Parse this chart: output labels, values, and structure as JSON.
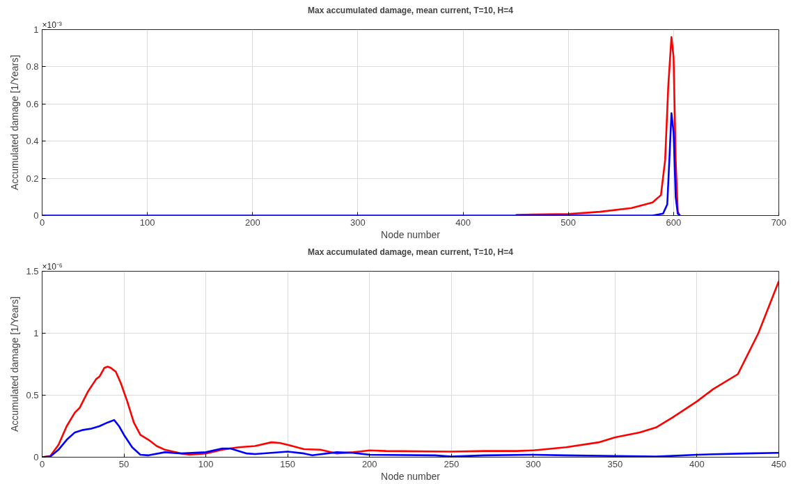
{
  "chart_data": [
    {
      "type": "line",
      "title": "Max accumulated damage, mean current, T=10, H=4",
      "xlabel": "Node number",
      "ylabel": "Accumulated damage [1/Years]",
      "annotations": [
        "×10⁻³"
      ],
      "xlim": [
        0,
        700
      ],
      "xticks": [
        0,
        100,
        200,
        300,
        400,
        500,
        600,
        700
      ],
      "ylim": [
        0,
        1
      ],
      "yticks": [
        0,
        0.2,
        0.4,
        0.6,
        0.8,
        1
      ],
      "grid": true,
      "line_style": "solid",
      "series": [
        {
          "color": "#ff0000",
          "x": [
            450,
            500,
            530,
            560,
            580,
            588,
            592,
            595,
            598,
            600,
            602,
            604,
            606
          ],
          "values": [
            0.004,
            0.008,
            0.02,
            0.04,
            0.07,
            0.11,
            0.3,
            0.7,
            0.96,
            0.85,
            0.3,
            0.02,
            0
          ]
        },
        {
          "color": "#0000ff",
          "x": [
            0,
            580,
            590,
            594,
            596,
            598,
            600,
            602,
            604,
            606
          ],
          "values": [
            0,
            0,
            0.01,
            0.06,
            0.3,
            0.55,
            0.45,
            0.1,
            0.01,
            0
          ]
        }
      ]
    },
    {
      "type": "line",
      "title": "Max accumulated damage, mean current, T=10, H=4",
      "xlabel": "Node number",
      "ylabel": "Accumulated damage [1/Years]",
      "annotations": [
        "×10⁻⁶"
      ],
      "xlim": [
        0,
        450
      ],
      "xticks": [
        0,
        50,
        100,
        150,
        200,
        250,
        300,
        350,
        400,
        450
      ],
      "ylim": [
        0,
        1.5
      ],
      "yticks": [
        0,
        0.5,
        1,
        1.5
      ],
      "grid": true,
      "line_style": "solid",
      "series": [
        {
          "color": "#ff0000",
          "x": [
            0,
            5,
            10,
            15,
            20,
            23,
            28,
            33,
            35,
            38,
            40,
            42,
            45,
            48,
            52,
            56,
            60,
            65,
            70,
            75,
            80,
            85,
            90,
            100,
            110,
            120,
            130,
            140,
            145,
            150,
            160,
            170,
            180,
            190,
            200,
            210,
            250,
            270,
            290,
            300,
            320,
            340,
            350,
            365,
            375,
            385,
            400,
            410,
            425,
            437.5,
            450
          ],
          "values": [
            0,
            0.01,
            0.1,
            0.25,
            0.36,
            0.4,
            0.53,
            0.63,
            0.65,
            0.72,
            0.73,
            0.72,
            0.69,
            0.6,
            0.45,
            0.28,
            0.18,
            0.14,
            0.09,
            0.06,
            0.045,
            0.03,
            0.02,
            0.03,
            0.06,
            0.08,
            0.09,
            0.12,
            0.115,
            0.1,
            0.065,
            0.06,
            0.03,
            0.04,
            0.055,
            0.05,
            0.045,
            0.05,
            0.05,
            0.055,
            0.08,
            0.12,
            0.16,
            0.2,
            0.24,
            0.32,
            0.45,
            0.55,
            0.67,
            1.0,
            1.42
          ]
        },
        {
          "color": "#0000ff",
          "x": [
            0,
            5,
            10,
            15,
            20,
            25,
            30,
            35,
            40,
            44,
            47,
            50,
            55,
            60,
            65,
            75,
            85,
            100,
            110,
            115,
            125,
            130,
            150,
            160,
            165,
            180,
            190,
            200,
            240,
            250,
            270,
            300,
            320,
            350,
            375,
            400,
            430,
            450
          ],
          "values": [
            0,
            0.005,
            0.06,
            0.14,
            0.2,
            0.22,
            0.23,
            0.25,
            0.28,
            0.3,
            0.25,
            0.18,
            0.08,
            0.02,
            0.015,
            0.04,
            0.03,
            0.04,
            0.07,
            0.07,
            0.03,
            0.025,
            0.045,
            0.03,
            0.015,
            0.04,
            0.035,
            0.02,
            0.015,
            0.005,
            0.015,
            0.02,
            0.015,
            0.01,
            0.005,
            0.02,
            0.03,
            0.035
          ]
        }
      ]
    }
  ]
}
